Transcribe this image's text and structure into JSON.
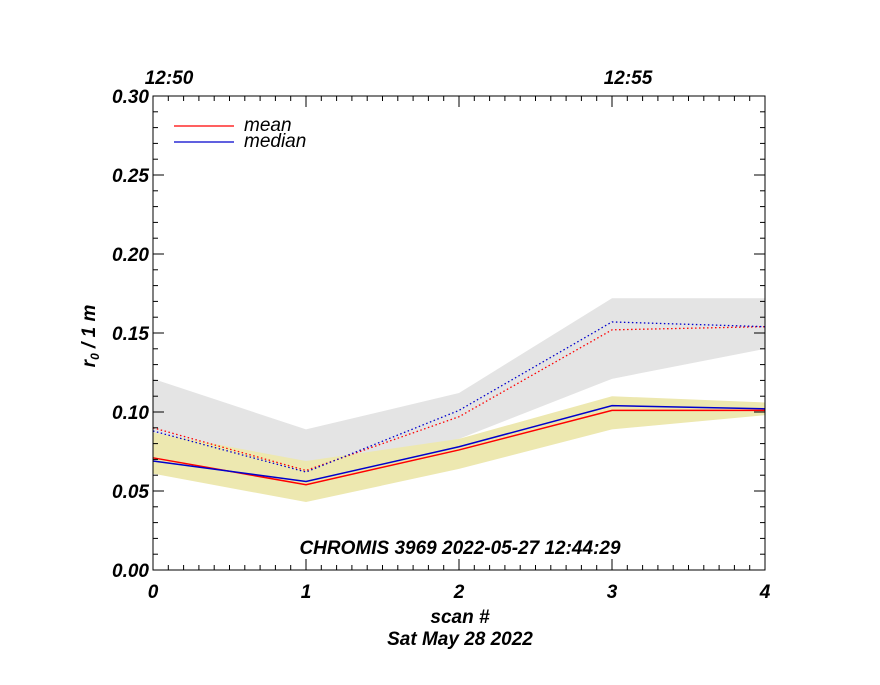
{
  "chart_data": {
    "type": "line",
    "annotation": "CHROMIS 3969 2022-05-27 12:44:29",
    "xlabel": "scan #",
    "date_label": "Sat May 28 2022",
    "ylabel": "r₀ / 1 m",
    "xlim": [
      0,
      4
    ],
    "ylim": [
      0.0,
      0.3
    ],
    "x_ticks": [
      0,
      1,
      2,
      3,
      4
    ],
    "x_tick_labels": [
      "0",
      "1",
      "2",
      "3",
      "4"
    ],
    "y_ticks": [
      0.0,
      0.05,
      0.1,
      0.15,
      0.2,
      0.25,
      0.3
    ],
    "y_tick_labels": [
      "0.00",
      "0.05",
      "0.10",
      "0.15",
      "0.20",
      "0.25",
      "0.30"
    ],
    "top_axis": {
      "ticks": [
        0,
        3
      ],
      "labels": [
        "12:50",
        "12:55"
      ]
    },
    "x": [
      0,
      1,
      2,
      3,
      4
    ],
    "legend": {
      "placement": "top-left",
      "entries": [
        "mean",
        "median"
      ]
    },
    "colors": {
      "mean": "#ff0000",
      "median": "#0000cc",
      "band_upper": "#e4e4e4",
      "band_lower": "#ede8b0"
    },
    "series": [
      {
        "name": "mean",
        "style": "solid",
        "values": [
          0.071,
          0.054,
          0.076,
          0.101,
          0.101
        ]
      },
      {
        "name": "median",
        "style": "solid",
        "values": [
          0.069,
          0.056,
          0.078,
          0.104,
          0.102
        ]
      },
      {
        "style": "dotted",
        "color": "mean",
        "values": [
          0.09,
          0.063,
          0.097,
          0.152,
          0.154
        ]
      },
      {
        "style": "dotted",
        "color": "median",
        "values": [
          0.088,
          0.062,
          0.101,
          0.157,
          0.154
        ]
      }
    ],
    "bands": [
      {
        "color": "band_upper",
        "upper": [
          0.121,
          0.089,
          0.112,
          0.172,
          0.172
        ],
        "lower": [
          0.08,
          0.058,
          0.083,
          0.121,
          0.14
        ]
      },
      {
        "color": "band_lower",
        "upper": [
          0.087,
          0.069,
          0.083,
          0.11,
          0.106
        ],
        "lower": [
          0.061,
          0.043,
          0.064,
          0.089,
          0.098
        ]
      }
    ]
  }
}
